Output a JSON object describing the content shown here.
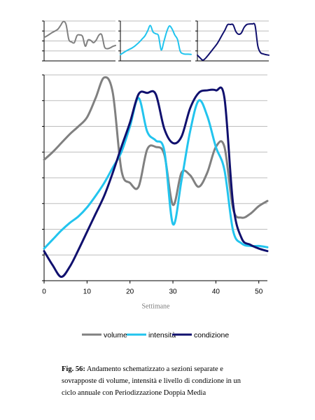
{
  "chart_data": [
    {
      "type": "line",
      "xlim": [
        0,
        52
      ],
      "ylim": [
        0,
        8
      ],
      "yticks": [
        0,
        2,
        4,
        6,
        8
      ],
      "series": [
        {
          "color": "#808080",
          "values": [
            4.7,
            5.0,
            5.35,
            5.7,
            6.0,
            6.35,
            7.1,
            7.9,
            7.3,
            4.3,
            3.8,
            3.65,
            5.1,
            5.2,
            4.9,
            2.95,
            4.2,
            4.1,
            3.65,
            4.2,
            5.2,
            5.2,
            2.8,
            2.45,
            2.6,
            2.9,
            3.1
          ]
        }
      ]
    },
    {
      "type": "line",
      "xlim": [
        0,
        52
      ],
      "ylim": [
        0,
        8
      ],
      "yticks": [
        0,
        2,
        4,
        6,
        8
      ],
      "series": [
        {
          "color": "#22c4ee",
          "values": [
            1.25,
            1.6,
            1.95,
            2.25,
            2.5,
            2.85,
            3.3,
            3.8,
            4.4,
            5.0,
            6.0,
            7.1,
            5.8,
            5.45,
            5.05,
            2.2,
            3.9,
            5.8,
            7.0,
            6.4,
            5.2,
            4.3,
            1.95,
            1.45,
            1.35,
            1.35,
            1.3
          ]
        }
      ]
    },
    {
      "type": "line",
      "xlim": [
        0,
        52
      ],
      "ylim": [
        0,
        8
      ],
      "yticks": [
        0,
        2,
        4,
        6,
        8
      ],
      "series": [
        {
          "color": "#10106e",
          "values": [
            1.15,
            0.6,
            0.15,
            0.55,
            1.2,
            1.9,
            2.6,
            3.3,
            4.2,
            5.2,
            6.15,
            7.25,
            7.3,
            7.25,
            5.9,
            5.35,
            5.6,
            6.7,
            7.3,
            7.4,
            7.4,
            7.1,
            3.0,
            1.65,
            1.4,
            1.25,
            1.15
          ]
        }
      ]
    },
    {
      "type": "line",
      "xlim": [
        0,
        52
      ],
      "xticks": [
        0,
        10,
        20,
        30,
        40,
        50
      ],
      "ylim": [
        0,
        8
      ],
      "yticks": [
        0,
        1,
        2,
        3,
        4,
        5,
        6,
        7,
        8
      ],
      "x": [
        0,
        2,
        4,
        6,
        8,
        10,
        12,
        14,
        16,
        18,
        20,
        22,
        24,
        26,
        28,
        30,
        32,
        34,
        36,
        38,
        40,
        42,
        44,
        46,
        48,
        50,
        52
      ],
      "xlabel": "Settimane",
      "grid": true,
      "legend": "bottom",
      "series": [
        {
          "name": "volume",
          "color": "#808080",
          "values": [
            4.7,
            5.0,
            5.35,
            5.7,
            6.0,
            6.35,
            7.1,
            7.9,
            7.3,
            4.3,
            3.8,
            3.65,
            5.1,
            5.2,
            4.9,
            2.95,
            4.2,
            4.1,
            3.65,
            4.2,
            5.2,
            5.2,
            2.8,
            2.45,
            2.6,
            2.9,
            3.1
          ]
        },
        {
          "name": "intensità",
          "color": "#22c4ee",
          "values": [
            1.25,
            1.6,
            1.95,
            2.25,
            2.5,
            2.85,
            3.3,
            3.8,
            4.4,
            5.0,
            6.0,
            7.1,
            5.8,
            5.45,
            5.05,
            2.2,
            3.9,
            5.8,
            7.0,
            6.4,
            5.2,
            4.3,
            1.95,
            1.45,
            1.35,
            1.35,
            1.3
          ]
        },
        {
          "name": "condizione",
          "color": "#10106e",
          "values": [
            1.15,
            0.6,
            0.15,
            0.55,
            1.2,
            1.9,
            2.6,
            3.3,
            4.2,
            5.2,
            6.15,
            7.25,
            7.3,
            7.25,
            5.9,
            5.35,
            5.6,
            6.7,
            7.3,
            7.4,
            7.4,
            7.1,
            3.0,
            1.65,
            1.4,
            1.25,
            1.15
          ]
        }
      ]
    }
  ],
  "caption_label": "Fig. 56:",
  "caption": "Andamento schematizzato a sezioni separate e sovrapposte di volume, intensità e livello di condizione in un ciclo annuale con Periodizzazione Doppia Media"
}
